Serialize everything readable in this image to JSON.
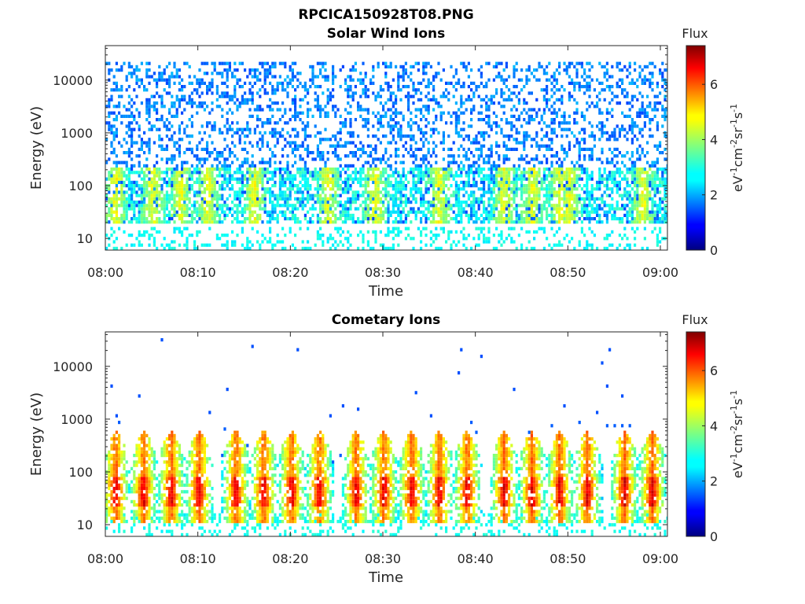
{
  "figure_title": "RPCICA150928T08.PNG",
  "chart_data": [
    {
      "type": "heatmap",
      "title": "Solar Wind Ions",
      "xlabel": "Time",
      "ylabel": "Energy (eV)",
      "yscale": "log",
      "xlim": [
        "08:00",
        "09:00"
      ],
      "ylim": [
        6,
        45000
      ],
      "xticks": [
        "08:00",
        "08:10",
        "08:20",
        "08:30",
        "08:40",
        "08:50",
        "09:00"
      ],
      "yticks": [
        "10",
        "100",
        "1000",
        "10000"
      ],
      "colorbar": {
        "title": "Flux",
        "label": "eV-1cm-2sr-1s-1",
        "range": [
          0,
          7.4
        ],
        "ticks": [
          "0",
          "2",
          "4",
          "6"
        ],
        "colormap": "jet"
      },
      "description_of_intensity": "scattered low flux (log10 ~1.5-2) across 10-20000 eV; enhanced flux (~3-4.5) at 30-200 eV in bursts",
      "burst_times": [
        "08:01",
        "08:05",
        "08:08",
        "08:11",
        "08:16",
        "08:24",
        "08:29",
        "08:36",
        "08:43",
        "08:46",
        "08:49",
        "08:50",
        "08:58"
      ]
    },
    {
      "type": "heatmap",
      "title": "Cometary Ions",
      "xlabel": "Time",
      "ylabel": "Energy (eV)",
      "yscale": "log",
      "xlim": [
        "08:00",
        "09:00"
      ],
      "ylim": [
        6,
        45000
      ],
      "xticks": [
        "08:00",
        "08:10",
        "08:20",
        "08:30",
        "08:40",
        "08:50",
        "09:00"
      ],
      "yticks": [
        "10",
        "100",
        "1000",
        "10000"
      ],
      "colorbar": {
        "title": "Flux",
        "label": "eV-1cm-2sr-1s-1",
        "range": [
          0,
          7.4
        ],
        "ticks": [
          "0",
          "2",
          "4",
          "6"
        ],
        "colormap": "jet"
      },
      "description_of_intensity": "periodic plume structures from ~10 eV to ~500 eV, peak flux ~5-6 near 30-80 eV; sparse isolated points up to ~10000 eV",
      "burst_times": [
        "08:01",
        "08:04",
        "08:07",
        "08:10",
        "08:14",
        "08:17",
        "08:20",
        "08:23",
        "08:27",
        "08:30",
        "08:33",
        "08:36",
        "08:39",
        "08:43",
        "08:46",
        "08:49",
        "08:52",
        "08:56",
        "08:59"
      ]
    }
  ]
}
